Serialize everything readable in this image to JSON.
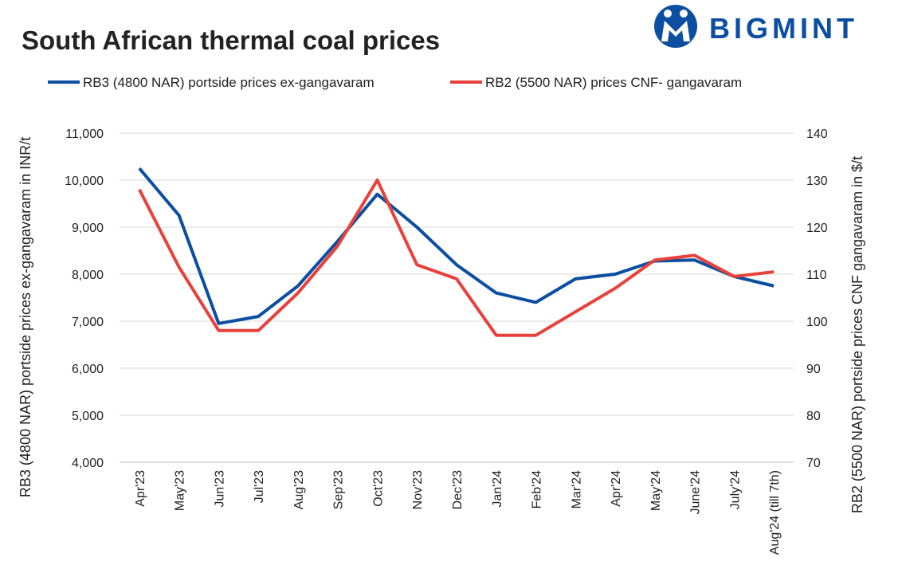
{
  "brand": "BIGMINT",
  "chart_data": {
    "type": "line",
    "title": "South African thermal coal prices",
    "categories": [
      "Apr'23",
      "May'23",
      "Jun'23",
      "Jul'23",
      "Aug'23",
      "Sep'23",
      "Oct'23",
      "Nov'23",
      "Dec'23",
      "Jan'24",
      "Feb'24",
      "Mar'24",
      "Apr'24",
      "May'24",
      "June'24",
      "July'24",
      "Aug'24 (till 7th)"
    ],
    "series": [
      {
        "name": "RB3 (4800 NAR) portside prices ex-gangavaram",
        "color": "#0b4ea2",
        "values": [
          10250,
          9250,
          6950,
          7100,
          7750,
          8700,
          9700,
          9000,
          8200,
          7600,
          7400,
          7900,
          8000,
          8280,
          8300,
          7950,
          7750
        ]
      },
      {
        "name": "RB2 (5500 NAR) prices CNF- gangavaram",
        "color": "#e8413c",
        "axis": "y2",
        "values": [
          128,
          111.5,
          98,
          98,
          106,
          116,
          130,
          112,
          109,
          97,
          97,
          102,
          107,
          113,
          114,
          109.5,
          110.5
        ]
      }
    ],
    "y_label": "RB3 (4800 NAR) portside prices ex-gangavaram  in INR/t",
    "y2_label": "RB2 (5500 NAR) portside prices CNF  gangavaram  in $/t",
    "ylim": [
      4000,
      11000
    ],
    "yticks": [
      {
        "value": 4000,
        "label": "4,000"
      },
      {
        "value": 5000,
        "label": "5,000"
      },
      {
        "value": 6000,
        "label": "6,000"
      },
      {
        "value": 7000,
        "label": "7,000"
      },
      {
        "value": 8000,
        "label": "8,000"
      },
      {
        "value": 9000,
        "label": "9,000"
      },
      {
        "value": 10000,
        "label": "10,000"
      },
      {
        "value": 11000,
        "label": "11,000"
      }
    ],
    "y2lim": [
      70,
      140
    ],
    "y2ticks": [
      70,
      80,
      90,
      100,
      110,
      120,
      130,
      140
    ],
    "grid": true,
    "legend": "top"
  }
}
